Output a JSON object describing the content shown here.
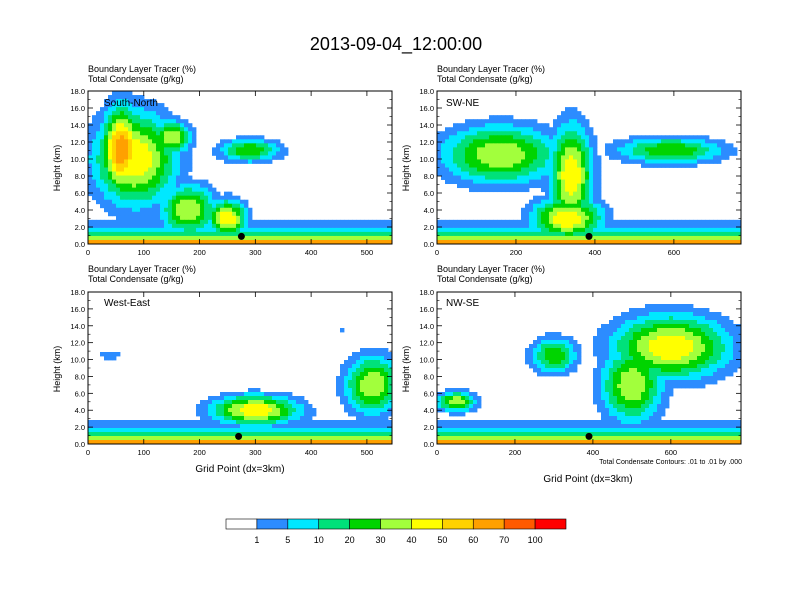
{
  "figure": {
    "title": "2013-09-04_12:00:00",
    "condensate_note": "Total Condensate Contours: .01 to .01 by .000"
  },
  "colors": {
    "levels": [
      "#ffffff",
      "#2c8cff",
      "#00e8ff",
      "#00e17a",
      "#00d400",
      "#a2ff3c",
      "#ffff00",
      "#ffd200",
      "#ffa000",
      "#ff5a00",
      "#ff0000"
    ],
    "ground": "#000000",
    "contour": "#000000"
  },
  "chart_data": [
    {
      "type": "heatmap",
      "panel_label": "South-North",
      "left_title_1": "Boundary Layer Tracer   (%)",
      "left_title_2": "Total Condensate   (g/kg)",
      "ylabel": "Height (km)",
      "xlabel": "",
      "xlim": [
        0,
        545
      ],
      "ylim": [
        0,
        18
      ],
      "xticks": [
        0,
        100,
        200,
        300,
        400,
        500
      ],
      "yticks": [
        "0.0",
        "2.0",
        "4.0",
        "6.0",
        "8.0",
        "10.0",
        "12.0",
        "14.0",
        "16.0",
        "18.0"
      ],
      "marker": {
        "x": 275,
        "y": 0.9
      },
      "features": [
        {
          "x": 85,
          "y": 10,
          "rx": 75,
          "ry": 5.5,
          "peak": 6
        },
        {
          "x": 60,
          "y": 11,
          "rx": 35,
          "ry": 5,
          "peak": 8
        },
        {
          "x": 150,
          "y": 12.5,
          "rx": 35,
          "ry": 2,
          "peak": 5
        },
        {
          "x": 290,
          "y": 11,
          "rx": 55,
          "ry": 1.4,
          "peak": 4
        },
        {
          "x": 180,
          "y": 4,
          "rx": 50,
          "ry": 3,
          "peak": 5
        },
        {
          "x": 250,
          "y": 3,
          "rx": 35,
          "ry": 2.2,
          "peak": 6
        }
      ]
    },
    {
      "type": "heatmap",
      "panel_label": "SW-NE",
      "left_title_1": "Boundary Layer Tracer   (%)",
      "left_title_2": "Total Condensate   (g/kg)",
      "ylabel": "Height (km)",
      "xlabel": "",
      "xlim": [
        0,
        770
      ],
      "ylim": [
        0,
        18
      ],
      "xticks": [
        0,
        200,
        400,
        600
      ],
      "yticks": [
        "0.0",
        "2.0",
        "4.0",
        "6.0",
        "8.0",
        "10.0",
        "12.0",
        "14.0",
        "16.0",
        "18.0"
      ],
      "marker": {
        "x": 385,
        "y": 0.9
      },
      "features": [
        {
          "x": 160,
          "y": 10.5,
          "rx": 150,
          "ry": 3.5,
          "peak": 5
        },
        {
          "x": 340,
          "y": 8,
          "rx": 55,
          "ry": 6,
          "peak": 6
        },
        {
          "x": 590,
          "y": 11,
          "rx": 140,
          "ry": 1.6,
          "peak": 4
        },
        {
          "x": 330,
          "y": 3,
          "rx": 90,
          "ry": 2.5,
          "peak": 6
        }
      ]
    },
    {
      "type": "heatmap",
      "panel_label": "West-East",
      "left_title_1": "Boundary Layer Tracer   (%)",
      "left_title_2": "Total Condensate   (g/kg)",
      "ylabel": "Height (km)",
      "xlabel": "Grid Point (dx=3km)",
      "xlim": [
        0,
        545
      ],
      "ylim": [
        0,
        18
      ],
      "xticks": [
        0,
        100,
        200,
        300,
        400,
        500
      ],
      "yticks": [
        "0.0",
        "2.0",
        "4.0",
        "6.0",
        "8.0",
        "10.0",
        "12.0",
        "14.0",
        "16.0",
        "18.0"
      ],
      "marker": {
        "x": 270,
        "y": 0.9
      },
      "features": [
        {
          "x": 40,
          "y": 10.5,
          "rx": 25,
          "ry": 0.5,
          "peak": 1
        },
        {
          "x": 455,
          "y": 13.5,
          "rx": 7,
          "ry": 0.6,
          "peak": 1
        },
        {
          "x": 300,
          "y": 4,
          "rx": 80,
          "ry": 1.8,
          "peak": 6
        },
        {
          "x": 510,
          "y": 7,
          "rx": 50,
          "ry": 3.5,
          "peak": 5
        }
      ]
    },
    {
      "type": "heatmap",
      "panel_label": "NW-SE",
      "left_title_1": "Boundary Layer Tracer   (%)",
      "left_title_2": "Total Condensate   (g/kg)",
      "ylabel": "Height (km)",
      "xlabel": "Grid Point (dx=3km)",
      "xlim": [
        0,
        780
      ],
      "ylim": [
        0,
        18
      ],
      "xticks": [
        0,
        200,
        400,
        600
      ],
      "yticks": [
        "0.0",
        "2.0",
        "4.0",
        "6.0",
        "8.0",
        "10.0",
        "12.0",
        "14.0",
        "16.0",
        "18.0"
      ],
      "marker": {
        "x": 390,
        "y": 0.9
      },
      "features": [
        {
          "x": 300,
          "y": 10.5,
          "rx": 60,
          "ry": 2.2,
          "peak": 4
        },
        {
          "x": 600,
          "y": 11.5,
          "rx": 150,
          "ry": 3.8,
          "peak": 6
        },
        {
          "x": 500,
          "y": 7,
          "rx": 80,
          "ry": 4.5,
          "peak": 5
        },
        {
          "x": 50,
          "y": 5,
          "rx": 50,
          "ry": 1.2,
          "peak": 5
        }
      ]
    }
  ],
  "colorbar": {
    "labels": [
      "1",
      "5",
      "10",
      "20",
      "30",
      "40",
      "50",
      "60",
      "70",
      "100"
    ]
  }
}
